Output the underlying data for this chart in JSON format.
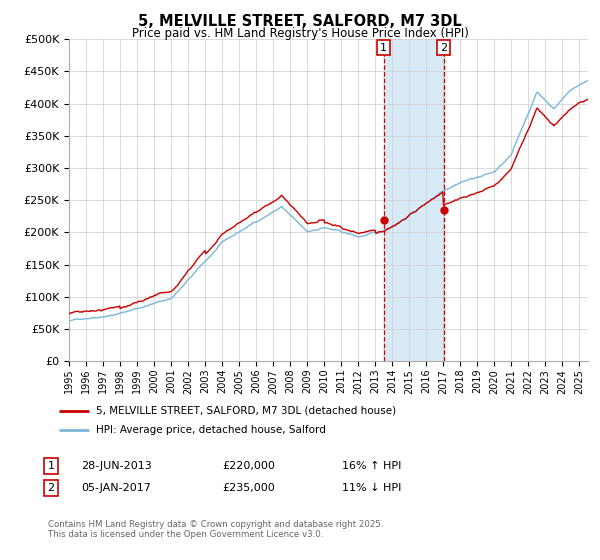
{
  "title": "5, MELVILLE STREET, SALFORD, M7 3DL",
  "subtitle": "Price paid vs. HM Land Registry's House Price Index (HPI)",
  "legend_line1": "5, MELVILLE STREET, SALFORD, M7 3DL (detached house)",
  "legend_line2": "HPI: Average price, detached house, Salford",
  "annotation1_label": "1",
  "annotation1_date": "28-JUN-2013",
  "annotation1_price": "£220,000",
  "annotation1_hpi": "16% ↑ HPI",
  "annotation2_label": "2",
  "annotation2_date": "05-JAN-2017",
  "annotation2_price": "£235,000",
  "annotation2_hpi": "11% ↓ HPI",
  "footnote1": "Contains HM Land Registry data © Crown copyright and database right 2025.",
  "footnote2": "This data is licensed under the Open Government Licence v3.0.",
  "sale1_x": 2013.49,
  "sale1_y": 220000,
  "sale2_x": 2017.02,
  "sale2_y": 235000,
  "hpi_color": "#7ab8d9",
  "price_color": "#cc0000",
  "sale_dot_color": "#cc0000",
  "vline_color": "#cc0000",
  "shade_color": "#d8eaf6",
  "ylim": [
    0,
    500000
  ],
  "xlim_start": 1995,
  "xlim_end": 2025.5,
  "background_color": "#ffffff",
  "grid_color": "#cccccc"
}
